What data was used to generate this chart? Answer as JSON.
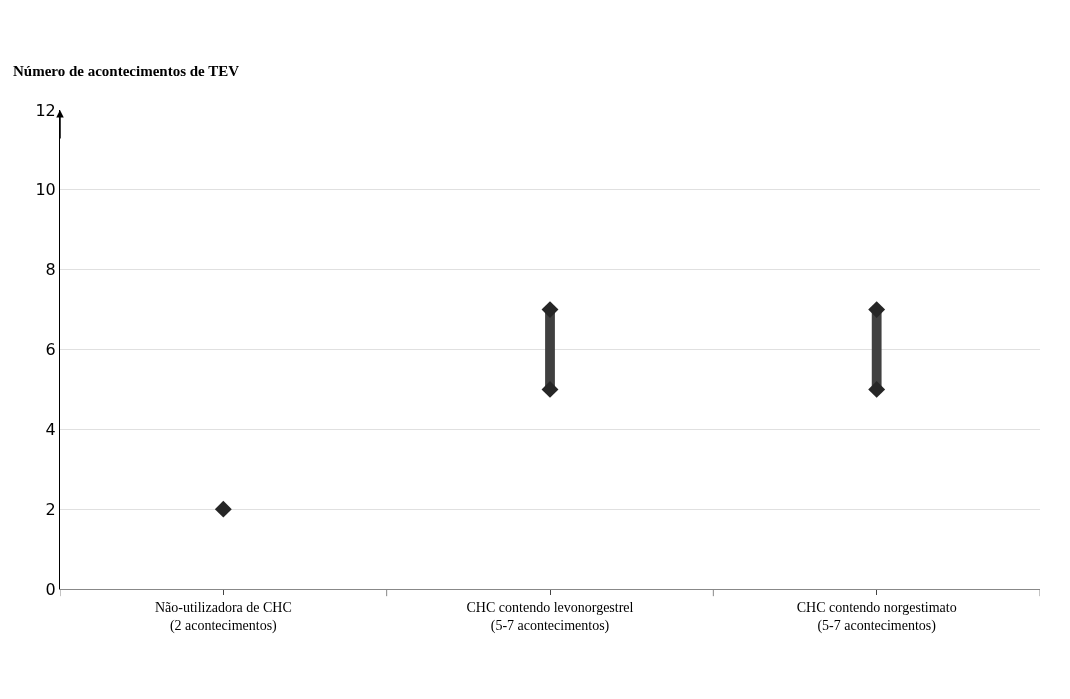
{
  "chart_data": {
    "type": "scatter",
    "ylabel": "Número de acontecimentos de TEV",
    "categories": [
      "Não-utilizadora de CHC\n(2 acontecimentos)",
      "CHC contendo levonorgestrel\n(5-7 acontecimentos)",
      "CHC contendo norgestimato\n(5-7 acontecimentos)"
    ],
    "series": [
      {
        "type": "bar",
        "color": "#404040",
        "base": [
          null,
          5,
          5
        ],
        "values": [
          null,
          2,
          2
        ]
      },
      {
        "color": "#262626",
        "marker": "diamond",
        "values": [
          2,
          5,
          5
        ]
      },
      {
        "color": "#262626",
        "marker": "diamond",
        "values": [
          null,
          7,
          7
        ]
      }
    ],
    "ylim": [
      0,
      12
    ],
    "yticks": [
      0,
      2,
      4,
      6,
      8,
      10,
      12
    ],
    "grid": "y"
  }
}
